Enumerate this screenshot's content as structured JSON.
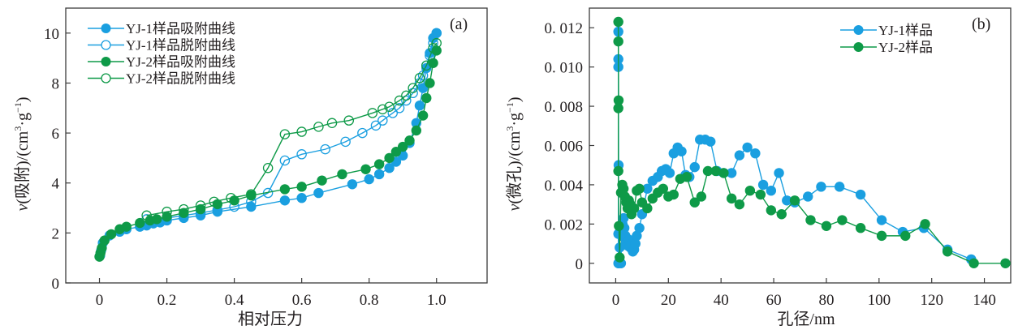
{
  "colors": {
    "blue": "#1a9fe0",
    "green": "#0e9a48",
    "axis": "#3c3c3c"
  },
  "chart_data": [
    {
      "type": "line",
      "panel_label": "(a)",
      "xlabel": "相对压力",
      "ylabel": "v(吸附)/(cm³·g⁻¹)",
      "ylabel_parts": {
        "var": "v",
        "main": "(吸附)/(cm",
        "sup1": "3",
        "mid": "·g",
        "sup2": "−1",
        "end": ")"
      },
      "xlim": [
        -0.1,
        1.15
      ],
      "ylim": [
        0,
        11
      ],
      "xticks": [
        0,
        0.2,
        0.4,
        0.6,
        0.8,
        1.0
      ],
      "xtick_labels": [
        "0",
        "0.2",
        "0.4",
        "0.6",
        "0.8",
        "1.0"
      ],
      "yticks": [
        0,
        2,
        4,
        6,
        8,
        10
      ],
      "ytick_labels": [
        "0",
        "2",
        "4",
        "6",
        "8",
        "10"
      ],
      "legend_position": "top-left",
      "grid": false,
      "series": [
        {
          "name": "YJ-1样品吸附曲线",
          "color": "blue",
          "marker": "filled",
          "x": [
            0.002,
            0.005,
            0.01,
            0.03,
            0.06,
            0.08,
            0.12,
            0.14,
            0.16,
            0.18,
            0.2,
            0.25,
            0.3,
            0.35,
            0.45,
            0.55,
            0.6,
            0.65,
            0.75,
            0.8,
            0.83,
            0.86,
            0.88,
            0.9,
            0.92,
            0.94,
            0.95,
            0.96,
            0.97,
            0.98,
            0.99,
            1.0
          ],
          "y": [
            1.1,
            1.3,
            1.6,
            1.9,
            2.05,
            2.15,
            2.25,
            2.3,
            2.38,
            2.42,
            2.5,
            2.6,
            2.7,
            2.85,
            3.05,
            3.3,
            3.4,
            3.6,
            3.95,
            4.15,
            4.35,
            4.6,
            4.85,
            5.1,
            5.6,
            6.4,
            7.1,
            7.8,
            8.6,
            9.2,
            9.8,
            10.0
          ]
        },
        {
          "name": "YJ-1样品脱附曲线",
          "color": "blue",
          "marker": "open",
          "x": [
            1.0,
            0.99,
            0.98,
            0.97,
            0.96,
            0.95,
            0.93,
            0.91,
            0.89,
            0.87,
            0.84,
            0.82,
            0.78,
            0.73,
            0.67,
            0.6,
            0.55,
            0.5,
            0.45,
            0.4,
            0.35,
            0.3,
            0.25,
            0.2,
            0.14
          ],
          "y": [
            10.0,
            9.6,
            9.1,
            8.7,
            8.3,
            8.0,
            7.6,
            7.3,
            7.0,
            6.8,
            6.5,
            6.3,
            6.0,
            5.65,
            5.35,
            5.15,
            4.9,
            3.6,
            3.25,
            3.05,
            2.92,
            2.8,
            2.7,
            2.6,
            2.55
          ]
        },
        {
          "name": "YJ-2样品吸附曲线",
          "color": "green",
          "marker": "filled",
          "x": [
            0.0,
            0.003,
            0.007,
            0.015,
            0.035,
            0.06,
            0.08,
            0.12,
            0.15,
            0.17,
            0.2,
            0.25,
            0.3,
            0.35,
            0.4,
            0.45,
            0.55,
            0.6,
            0.66,
            0.72,
            0.79,
            0.83,
            0.86,
            0.88,
            0.9,
            0.92,
            0.94,
            0.96,
            0.97,
            0.98,
            0.99,
            1.0
          ],
          "y": [
            1.05,
            1.2,
            1.4,
            1.7,
            1.95,
            2.15,
            2.25,
            2.4,
            2.5,
            2.55,
            2.65,
            2.8,
            2.95,
            3.15,
            3.3,
            3.5,
            3.75,
            3.85,
            4.1,
            4.35,
            4.55,
            4.75,
            5.0,
            5.25,
            5.45,
            5.7,
            6.1,
            6.7,
            7.4,
            8.0,
            8.8,
            9.3
          ]
        },
        {
          "name": "YJ-2样品脱附曲线",
          "color": "green",
          "marker": "open",
          "x": [
            1.0,
            0.99,
            0.97,
            0.95,
            0.93,
            0.91,
            0.89,
            0.86,
            0.84,
            0.81,
            0.74,
            0.69,
            0.65,
            0.6,
            0.55,
            0.5,
            0.45,
            0.39,
            0.34,
            0.3,
            0.25,
            0.2,
            0.14
          ],
          "y": [
            9.6,
            9.4,
            8.7,
            8.2,
            7.8,
            7.5,
            7.3,
            7.05,
            6.95,
            6.8,
            6.5,
            6.4,
            6.25,
            6.05,
            5.95,
            4.6,
            3.55,
            3.4,
            3.25,
            3.1,
            2.95,
            2.85,
            2.7
          ]
        }
      ]
    },
    {
      "type": "line",
      "panel_label": "(b)",
      "xlabel": "孔径/nm",
      "ylabel": "v(微孔)/(cm³·g⁻¹)",
      "ylabel_parts": {
        "var": "v",
        "main": "(微孔)/(cm",
        "sup1": "3",
        "mid": "·g",
        "sup2": "−1",
        "end": ")"
      },
      "xlim": [
        -10,
        150
      ],
      "ylim": [
        -0.001,
        0.013
      ],
      "xticks": [
        0,
        20,
        40,
        60,
        80,
        100,
        120,
        140
      ],
      "xtick_labels": [
        "0",
        "20",
        "40",
        "60",
        "80",
        "100",
        "120",
        "140"
      ],
      "yticks": [
        0,
        0.002,
        0.004,
        0.006,
        0.008,
        0.01,
        0.012
      ],
      "ytick_labels": [
        "0",
        "0. 002",
        "0. 004",
        "0. 006",
        "0. 008",
        "0. 010",
        "0. 012"
      ],
      "legend_position": "top-right",
      "grid": false,
      "series": [
        {
          "name": "YJ-1样品",
          "color": "blue",
          "marker": "filled",
          "x": [
            1.0,
            1.0,
            1.0,
            1.1,
            1.0,
            1.0,
            1.2,
            1.5,
            2.0,
            2.3,
            2.6,
            3.0,
            3.3,
            3.7,
            4.0,
            4.5,
            5.0,
            5.5,
            6.0,
            6.5,
            7.0,
            7.5,
            8.0,
            9.0,
            10.0,
            12.0,
            14.0,
            16.0,
            17.5,
            19.0,
            20.5,
            22.0,
            23.5,
            25.0,
            26.5,
            28.0,
            30.0,
            32.0,
            34.0,
            36.0,
            38.5,
            41.0,
            44.0,
            47.0,
            50.0,
            53.0,
            56.0,
            59.0,
            62.0,
            65.0,
            68.0,
            73.0,
            78.0,
            85.0,
            93.0,
            101.0,
            109.0,
            117.0,
            126.0,
            135.0
          ],
          "y": [
            0.0118,
            0.0104,
            0.01,
            0.005,
            0.0015,
            0.0,
            0.0,
            0.0008,
            0.0,
            0.0014,
            0.002,
            0.0023,
            0.0018,
            0.0014,
            0.001,
            0.0009,
            0.0012,
            0.0008,
            0.001,
            0.0006,
            0.0007,
            0.001,
            0.0014,
            0.0018,
            0.0025,
            0.0038,
            0.0042,
            0.0044,
            0.0047,
            0.0048,
            0.0046,
            0.0056,
            0.0059,
            0.0057,
            0.0045,
            0.0044,
            0.0049,
            0.0063,
            0.0063,
            0.0062,
            0.0047,
            0.0046,
            0.0046,
            0.0055,
            0.0059,
            0.0056,
            0.004,
            0.0037,
            0.0046,
            0.0032,
            0.0031,
            0.0034,
            0.0039,
            0.0039,
            0.0035,
            0.0022,
            0.0016,
            0.0018,
            0.0007,
            0.0002
          ]
        },
        {
          "name": "YJ-2样品",
          "color": "green",
          "marker": "filled",
          "x": [
            1.0,
            1.0,
            1.1,
            1.0,
            1.0,
            1.2,
            1.5,
            2.0,
            2.5,
            3.0,
            3.5,
            4.0,
            4.5,
            5.0,
            5.5,
            6.0,
            7.0,
            8.0,
            9.0,
            10.0,
            12.0,
            14.0,
            16.0,
            18.0,
            20.0,
            22.0,
            24.5,
            27.0,
            30.0,
            32.5,
            35.0,
            38.0,
            41.0,
            44.0,
            47.0,
            51.0,
            55.0,
            59.0,
            63.0,
            68.0,
            74.0,
            80.0,
            86.0,
            93.0,
            101.0,
            110.0,
            117.5,
            126.0,
            136.0,
            148.0
          ],
          "y": [
            0.0123,
            0.0113,
            0.0083,
            0.0079,
            0.0047,
            0.0019,
            0.0003,
            0.0036,
            0.004,
            0.0038,
            0.0034,
            0.0031,
            0.0028,
            0.0032,
            0.003,
            0.0025,
            0.0028,
            0.0037,
            0.0038,
            0.0031,
            0.0028,
            0.0033,
            0.0036,
            0.0038,
            0.0034,
            0.0035,
            0.0043,
            0.0044,
            0.0031,
            0.0034,
            0.0047,
            0.0047,
            0.0046,
            0.0033,
            0.003,
            0.0037,
            0.0035,
            0.0027,
            0.0025,
            0.0032,
            0.0022,
            0.0019,
            0.0022,
            0.0018,
            0.0014,
            0.0014,
            0.002,
            0.0006,
            0.0,
            0.0
          ]
        }
      ]
    }
  ]
}
